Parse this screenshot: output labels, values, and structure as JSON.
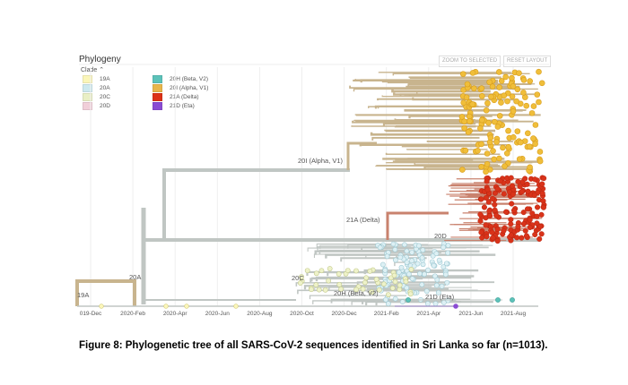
{
  "panel": {
    "title": "Phylogeny",
    "clade_label": "Clade",
    "zoom_button": "ZOOM TO SELECTED",
    "reset_button": "RESET LAYOUT"
  },
  "legend": [
    {
      "label": "19A",
      "color": "#fbf6b9"
    },
    {
      "label": "20A",
      "color": "#cde9ef"
    },
    {
      "label": "20C",
      "color": "#e9efc5"
    },
    {
      "label": "20D",
      "color": "#f1cfd9"
    },
    {
      "label": "20H (Beta, V2)",
      "color": "#5cc2b9"
    },
    {
      "label": "20I (Alpha, V1)",
      "color": "#e8b64b"
    },
    {
      "label": "21A (Delta)",
      "color": "#dc3217"
    },
    {
      "label": "21D (Eta)",
      "color": "#8a4bd3"
    }
  ],
  "axis_ticks": [
    "019-Dec",
    "2020-Feb",
    "2020-Apr",
    "2020-Jun",
    "2020-Aug",
    "2020-Oct",
    "2020-Dec",
    "2021-Feb",
    "2021-Apr",
    "2021-Jun",
    "2021-Aug"
  ],
  "clade_labels": {
    "a19": "19A",
    "a20": "20A",
    "c20": "20C",
    "d20": "20D",
    "h20": "20H (Beta, V2)",
    "i20": "20I (Alpha, V1)",
    "a21": "21A (Delta)",
    "d21": "21D (Eta)"
  },
  "caption": "Figure 8: Phylogenetic tree of all SARS-CoV-2 sequences identified in Sri Lanka so far (n=1013)."
}
